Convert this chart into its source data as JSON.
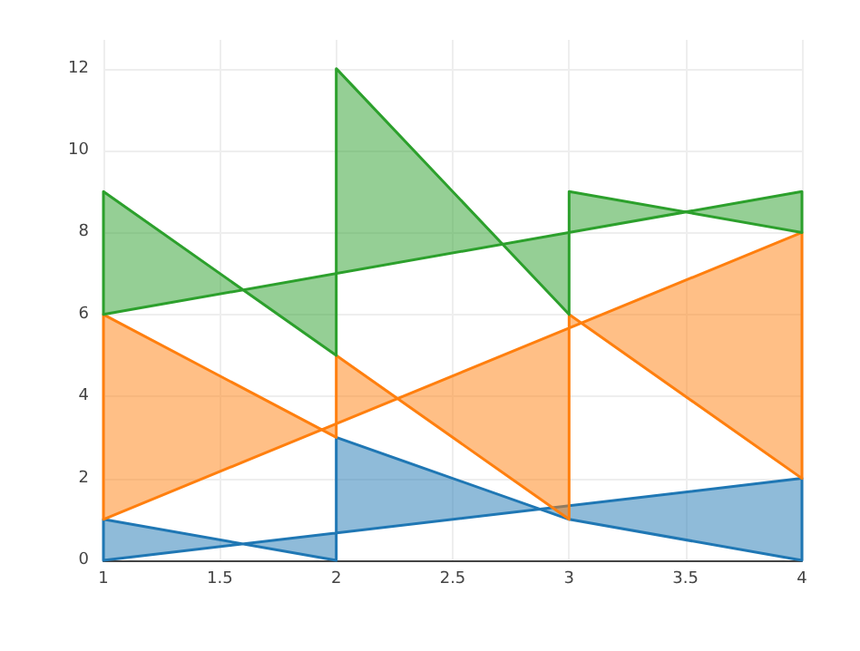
{
  "chart_data": {
    "type": "area",
    "xlim": [
      1,
      4
    ],
    "xticks": [
      1,
      1.5,
      2,
      2.5,
      3,
      3.5,
      4
    ],
    "ylim": [
      0,
      12.7
    ],
    "yticks": [
      0,
      2,
      4,
      6,
      8,
      10,
      12
    ],
    "grid": true,
    "series": [
      {
        "color": "#1f77b4",
        "x": [
          1,
          1,
          2,
          2,
          3,
          4,
          4,
          1
        ],
        "values": [
          0,
          1,
          0,
          3,
          1,
          0,
          2,
          0
        ]
      },
      {
        "color": "#ff7f0e",
        "x": [
          1,
          1,
          2,
          2,
          3,
          3,
          4,
          4,
          1
        ],
        "values": [
          1,
          6,
          3,
          5,
          1,
          6,
          2,
          8,
          1
        ]
      },
      {
        "color": "#2ca02c",
        "x": [
          1,
          1,
          2,
          2,
          3,
          3,
          4,
          4,
          1
        ],
        "values": [
          6,
          9,
          5,
          12,
          6,
          9,
          8,
          9,
          6
        ]
      }
    ]
  }
}
